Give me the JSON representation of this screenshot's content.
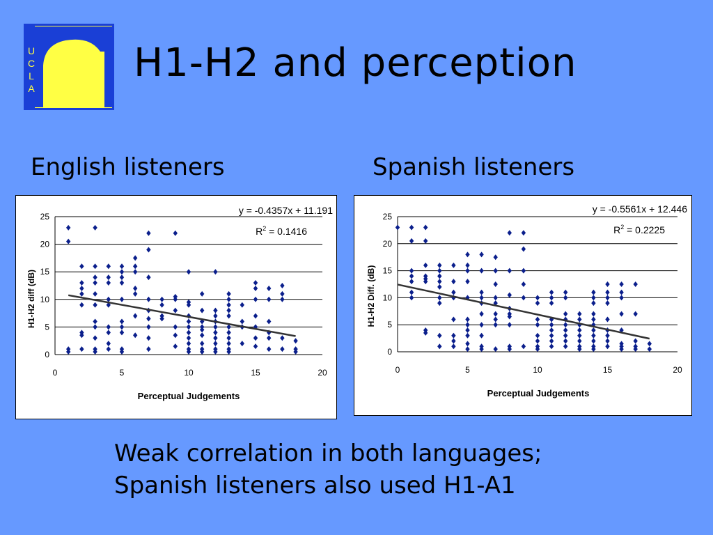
{
  "slide": {
    "title": "H1-H2 and perception",
    "logo_letters": [
      "U",
      "C",
      "L",
      "A"
    ],
    "caption_lines": [
      "Weak correlation in both languages;",
      "Spanish listeners also used H1-A1"
    ]
  },
  "colors": {
    "background": "#6699ff",
    "marker": "#0b1f8c",
    "trendline": "#333333",
    "logo_yellow": "#ffff44",
    "logo_blue": "#1a3fd6"
  },
  "chart_data": [
    {
      "type": "scatter",
      "heading": "English listeners",
      "title": "",
      "xlabel": "Perceptual Judgements",
      "ylabel": "H1-H2 diff (dB)",
      "xlim": [
        0,
        20
      ],
      "ylim": [
        0,
        25
      ],
      "xticks": [
        0,
        5,
        10,
        15,
        20
      ],
      "yticks": [
        0,
        5,
        10,
        15,
        20,
        25
      ],
      "grid": "horizontal",
      "equation": "y = -0.4357x + 11.191",
      "r2_text": "R",
      "r2_sup": "2",
      "r2_value": " = 0.1416",
      "trendline": {
        "slope": -0.4357,
        "intercept": 11.191,
        "x_range": [
          1,
          18
        ]
      },
      "points": [
        [
          1,
          23
        ],
        [
          1,
          20.5
        ],
        [
          1,
          1
        ],
        [
          1,
          0.5
        ],
        [
          2,
          16
        ],
        [
          2,
          13
        ],
        [
          2,
          12
        ],
        [
          2,
          11
        ],
        [
          2,
          9
        ],
        [
          2,
          4
        ],
        [
          2,
          3.5
        ],
        [
          2,
          1
        ],
        [
          3,
          23
        ],
        [
          3,
          16
        ],
        [
          3,
          14
        ],
        [
          3,
          13
        ],
        [
          3,
          11
        ],
        [
          3,
          9
        ],
        [
          3,
          6
        ],
        [
          3,
          5
        ],
        [
          3,
          3
        ],
        [
          3,
          1
        ],
        [
          3,
          0.5
        ],
        [
          4,
          16
        ],
        [
          4,
          14
        ],
        [
          4,
          13
        ],
        [
          4,
          10
        ],
        [
          4,
          9
        ],
        [
          4,
          5
        ],
        [
          4,
          4
        ],
        [
          4,
          2
        ],
        [
          4,
          1
        ],
        [
          5,
          16
        ],
        [
          5,
          15
        ],
        [
          5,
          14
        ],
        [
          5,
          13
        ],
        [
          5,
          10
        ],
        [
          5,
          6
        ],
        [
          5,
          5
        ],
        [
          5,
          4
        ],
        [
          5,
          1
        ],
        [
          5,
          0.5
        ],
        [
          6,
          17.5
        ],
        [
          6,
          16
        ],
        [
          6,
          15
        ],
        [
          6,
          12
        ],
        [
          6,
          11
        ],
        [
          6,
          7
        ],
        [
          6,
          3.5
        ],
        [
          7,
          22
        ],
        [
          7,
          19
        ],
        [
          7,
          14
        ],
        [
          7,
          10
        ],
        [
          7,
          8
        ],
        [
          7,
          6.5
        ],
        [
          7,
          5
        ],
        [
          7,
          3
        ],
        [
          7,
          1
        ],
        [
          8,
          10
        ],
        [
          8,
          9
        ],
        [
          8,
          7
        ],
        [
          8,
          6.5
        ],
        [
          9,
          22
        ],
        [
          9,
          10.5
        ],
        [
          9,
          10
        ],
        [
          9,
          8
        ],
        [
          9,
          5
        ],
        [
          9,
          3.5
        ],
        [
          9,
          1.5
        ],
        [
          10,
          15
        ],
        [
          10,
          9.5
        ],
        [
          10,
          9
        ],
        [
          10,
          7
        ],
        [
          10,
          6
        ],
        [
          10,
          5
        ],
        [
          10,
          4
        ],
        [
          10,
          3
        ],
        [
          10,
          2
        ],
        [
          10,
          1
        ],
        [
          10,
          0.5
        ],
        [
          11,
          11
        ],
        [
          11,
          8
        ],
        [
          11,
          6
        ],
        [
          11,
          5
        ],
        [
          11,
          4.5
        ],
        [
          11,
          3.5
        ],
        [
          11,
          2
        ],
        [
          11,
          1
        ],
        [
          11,
          0.5
        ],
        [
          12,
          15
        ],
        [
          12,
          8
        ],
        [
          12,
          7
        ],
        [
          12,
          6
        ],
        [
          12,
          5
        ],
        [
          12,
          4
        ],
        [
          12,
          3
        ],
        [
          12,
          2
        ],
        [
          12,
          1
        ],
        [
          12,
          0.5
        ],
        [
          13,
          11
        ],
        [
          13,
          10
        ],
        [
          13,
          9
        ],
        [
          13,
          8
        ],
        [
          13,
          7
        ],
        [
          13,
          5
        ],
        [
          13,
          4
        ],
        [
          13,
          3
        ],
        [
          13,
          2
        ],
        [
          13,
          1
        ],
        [
          13,
          0.5
        ],
        [
          14,
          9
        ],
        [
          14,
          6
        ],
        [
          14,
          5
        ],
        [
          14,
          2
        ],
        [
          15,
          13
        ],
        [
          15,
          12
        ],
        [
          15,
          10
        ],
        [
          15,
          7
        ],
        [
          15,
          5
        ],
        [
          15,
          3
        ],
        [
          15,
          1.5
        ],
        [
          16,
          12
        ],
        [
          16,
          10
        ],
        [
          16,
          6
        ],
        [
          16,
          4
        ],
        [
          16,
          3
        ],
        [
          16,
          1
        ],
        [
          17,
          12.5
        ],
        [
          17,
          11
        ],
        [
          17,
          10
        ],
        [
          17,
          3
        ],
        [
          17,
          1
        ],
        [
          18,
          2.5
        ],
        [
          18,
          1
        ],
        [
          18,
          0.5
        ]
      ]
    },
    {
      "type": "scatter",
      "heading": "Spanish listeners",
      "title": "",
      "xlabel": "Perceptual Judgements",
      "ylabel": "H1-H2 Diff. (dB)",
      "xlim": [
        0,
        20
      ],
      "ylim": [
        0,
        25
      ],
      "xticks": [
        0,
        5,
        10,
        15,
        20
      ],
      "yticks": [
        0,
        5,
        10,
        15,
        20,
        25
      ],
      "grid": "horizontal",
      "equation": "y = -0.5561x + 12.446",
      "r2_text": "R",
      "r2_sup": "2",
      "r2_value": " = 0.2225",
      "trendline": {
        "slope": -0.5561,
        "intercept": 12.446,
        "x_range": [
          0,
          18
        ]
      },
      "points": [
        [
          0,
          23
        ],
        [
          1,
          23
        ],
        [
          1,
          20.5
        ],
        [
          1,
          15
        ],
        [
          1,
          14
        ],
        [
          1,
          13
        ],
        [
          1,
          11
        ],
        [
          1,
          10
        ],
        [
          2,
          23
        ],
        [
          2,
          20.5
        ],
        [
          2,
          16
        ],
        [
          2,
          14
        ],
        [
          2,
          13.5
        ],
        [
          2,
          13
        ],
        [
          2,
          4
        ],
        [
          2,
          3.5
        ],
        [
          3,
          16
        ],
        [
          3,
          15
        ],
        [
          3,
          14
        ],
        [
          3,
          13
        ],
        [
          3,
          12
        ],
        [
          3,
          10
        ],
        [
          3,
          9
        ],
        [
          3,
          3
        ],
        [
          3,
          1
        ],
        [
          4,
          16
        ],
        [
          4,
          13
        ],
        [
          4,
          11
        ],
        [
          4,
          10
        ],
        [
          4,
          6
        ],
        [
          4,
          3
        ],
        [
          4,
          2
        ],
        [
          4,
          1
        ],
        [
          5,
          18
        ],
        [
          5,
          16
        ],
        [
          5,
          15
        ],
        [
          5,
          13
        ],
        [
          5,
          10
        ],
        [
          5,
          6
        ],
        [
          5,
          5
        ],
        [
          5,
          4
        ],
        [
          5,
          3
        ],
        [
          5,
          1.5
        ],
        [
          5,
          0.5
        ],
        [
          6,
          18
        ],
        [
          6,
          15
        ],
        [
          6,
          11
        ],
        [
          6,
          10
        ],
        [
          6,
          9
        ],
        [
          6,
          7
        ],
        [
          6,
          5
        ],
        [
          6,
          3
        ],
        [
          6,
          1
        ],
        [
          6,
          0.5
        ],
        [
          7,
          17.5
        ],
        [
          7,
          15
        ],
        [
          7,
          12.5
        ],
        [
          7,
          10
        ],
        [
          7,
          9
        ],
        [
          7,
          7
        ],
        [
          7,
          6
        ],
        [
          7,
          5
        ],
        [
          7,
          0.5
        ],
        [
          8,
          22
        ],
        [
          8,
          15
        ],
        [
          8,
          10.5
        ],
        [
          8,
          8
        ],
        [
          8,
          7
        ],
        [
          8,
          6.5
        ],
        [
          8,
          5
        ],
        [
          8,
          1
        ],
        [
          8,
          0.5
        ],
        [
          9,
          22
        ],
        [
          9,
          19
        ],
        [
          9,
          15
        ],
        [
          9,
          12.5
        ],
        [
          9,
          10
        ],
        [
          9,
          1
        ],
        [
          10,
          10
        ],
        [
          10,
          9
        ],
        [
          10,
          6
        ],
        [
          10,
          5
        ],
        [
          10,
          3
        ],
        [
          10,
          2
        ],
        [
          10,
          1
        ],
        [
          10,
          0.5
        ],
        [
          11,
          11
        ],
        [
          11,
          10
        ],
        [
          11,
          9
        ],
        [
          11,
          6
        ],
        [
          11,
          5
        ],
        [
          11,
          4
        ],
        [
          11,
          3
        ],
        [
          11,
          2
        ],
        [
          11,
          1
        ],
        [
          12,
          11
        ],
        [
          12,
          10
        ],
        [
          12,
          7
        ],
        [
          12,
          6
        ],
        [
          12,
          5
        ],
        [
          12,
          4
        ],
        [
          12,
          3
        ],
        [
          12,
          2
        ],
        [
          12,
          1
        ],
        [
          13,
          7
        ],
        [
          13,
          6
        ],
        [
          13,
          5
        ],
        [
          13,
          4
        ],
        [
          13,
          3
        ],
        [
          13,
          2
        ],
        [
          13,
          1
        ],
        [
          13,
          0.5
        ],
        [
          14,
          11
        ],
        [
          14,
          10
        ],
        [
          14,
          9
        ],
        [
          14,
          7
        ],
        [
          14,
          6
        ],
        [
          14,
          5
        ],
        [
          14,
          4
        ],
        [
          14,
          3
        ],
        [
          14,
          2
        ],
        [
          14,
          1
        ],
        [
          14,
          0.5
        ],
        [
          15,
          12.5
        ],
        [
          15,
          11
        ],
        [
          15,
          10
        ],
        [
          15,
          9
        ],
        [
          15,
          6
        ],
        [
          15,
          4
        ],
        [
          15,
          3
        ],
        [
          15,
          2
        ],
        [
          15,
          1
        ],
        [
          16,
          12.5
        ],
        [
          16,
          11
        ],
        [
          16,
          10
        ],
        [
          16,
          7
        ],
        [
          16,
          4
        ],
        [
          16,
          1.5
        ],
        [
          16,
          1
        ],
        [
          16,
          0.5
        ],
        [
          17,
          12.5
        ],
        [
          17,
          7
        ],
        [
          17,
          2
        ],
        [
          17,
          1
        ],
        [
          17,
          0.5
        ],
        [
          18,
          1.5
        ],
        [
          18,
          0.5
        ]
      ]
    }
  ]
}
